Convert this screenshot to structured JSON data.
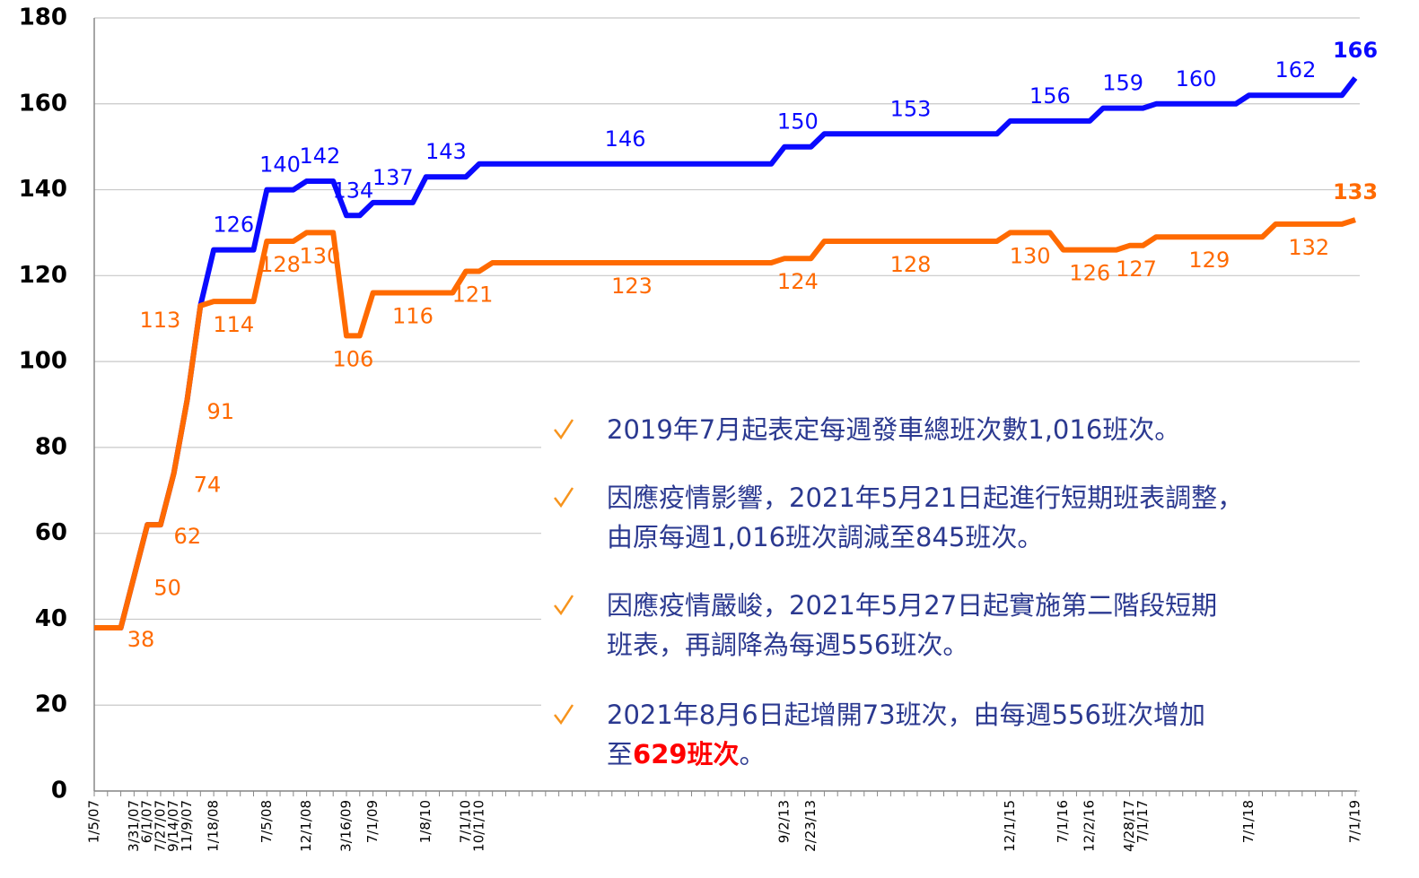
{
  "chart_data": {
    "type": "line",
    "categories": [
      "1/5/07",
      null,
      null,
      "3/31/07",
      "6/1/07",
      "7/27/07",
      "9/14/07",
      "11/9/07",
      null,
      "1/18/08",
      null,
      null,
      null,
      "7/5/08",
      null,
      null,
      "12/1/08",
      null,
      null,
      "3/16/09",
      null,
      "7/1/09",
      null,
      null,
      null,
      "1/8/10",
      null,
      null,
      "7/1/10",
      "10/1/10",
      null,
      null,
      null,
      null,
      null,
      null,
      null,
      null,
      null,
      null,
      null,
      null,
      null,
      null,
      null,
      null,
      null,
      null,
      null,
      null,
      null,
      null,
      "9/2/13",
      null,
      "2/23/13",
      null,
      null,
      null,
      null,
      null,
      null,
      null,
      null,
      null,
      null,
      null,
      null,
      null,
      null,
      "12/1/15",
      null,
      null,
      null,
      "7/1/16",
      null,
      "12/2/16",
      null,
      null,
      "4/28/17",
      "7/1/17",
      null,
      null,
      null,
      null,
      null,
      null,
      null,
      "7/1/18",
      null,
      null,
      null,
      null,
      null,
      null,
      null,
      "7/1/19"
    ],
    "series": [
      {
        "color": "#ff6a00",
        "values": [
          38,
          38,
          38,
          50,
          62,
          62,
          74,
          91,
          113,
          114,
          114,
          114,
          114,
          128,
          128,
          128,
          130,
          130,
          130,
          106,
          106,
          116,
          116,
          116,
          116,
          116,
          116,
          116,
          121,
          121,
          123,
          123,
          123,
          123,
          123,
          123,
          123,
          123,
          123,
          123,
          123,
          123,
          123,
          123,
          123,
          123,
          123,
          123,
          123,
          123,
          123,
          123,
          124,
          124,
          124,
          128,
          128,
          128,
          128,
          128,
          128,
          128,
          128,
          128,
          128,
          128,
          128,
          128,
          128,
          130,
          130,
          130,
          130,
          126,
          126,
          126,
          126,
          126,
          127,
          127,
          129,
          129,
          129,
          129,
          129,
          129,
          129,
          129,
          129,
          132,
          132,
          132,
          132,
          132,
          132,
          133
        ]
      },
      {
        "color": "#0a0aff",
        "values": [
          38,
          38,
          38,
          50,
          62,
          62,
          74,
          91,
          113,
          126,
          126,
          126,
          126,
          140,
          140,
          140,
          142,
          142,
          142,
          134,
          134,
          137,
          137,
          137,
          137,
          143,
          143,
          143,
          143,
          146,
          146,
          146,
          146,
          146,
          146,
          146,
          146,
          146,
          146,
          146,
          146,
          146,
          146,
          146,
          146,
          146,
          146,
          146,
          146,
          146,
          146,
          146,
          150,
          150,
          150,
          153,
          153,
          153,
          153,
          153,
          153,
          153,
          153,
          153,
          153,
          153,
          153,
          153,
          153,
          156,
          156,
          156,
          156,
          156,
          156,
          156,
          159,
          159,
          159,
          159,
          160,
          160,
          160,
          160,
          160,
          160,
          160,
          162,
          162,
          162,
          162,
          162,
          162,
          162,
          162,
          166
        ]
      }
    ],
    "ylim": [
      0,
      180
    ],
    "yticks": [
      0,
      20,
      40,
      60,
      80,
      100,
      120,
      140,
      160,
      180
    ],
    "grid": true,
    "notes": [
      [
        [
          {
            "text": "2019年7月起表定每週發車總班次數1,016班次。"
          }
        ]
      ],
      [
        [
          {
            "text": "因應疫情影響，2021年5月21日起進行短期班表調整，"
          }
        ],
        [
          {
            "text": "由原每週1,016班次調減至845班次。"
          }
        ]
      ],
      [
        [
          {
            "text": "因應疫情嚴峻，2021年5月27日起實施第二階段短期"
          }
        ],
        [
          {
            "text": "班表，再調降為每週556班次。"
          }
        ]
      ],
      [
        [
          {
            "text": "2021年8月6日起增開73班次，由每週556班次增加"
          }
        ],
        [
          {
            "text": "至"
          },
          {
            "text": "629班次",
            "color": "#ff0000",
            "bold": true
          },
          {
            "text": "。"
          }
        ]
      ]
    ]
  }
}
